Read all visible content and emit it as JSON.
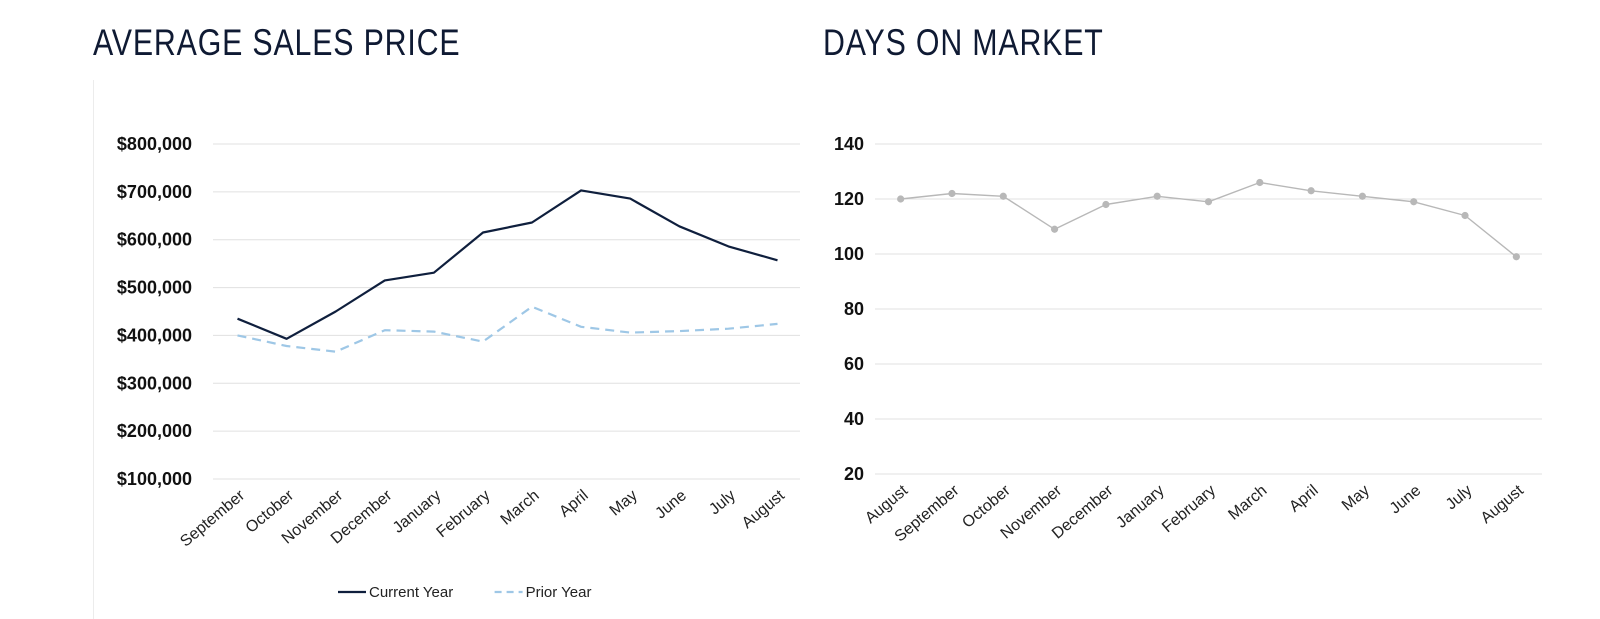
{
  "chart_data": [
    {
      "type": "line",
      "title": "AVERAGE SALES PRICE",
      "xlabel": "",
      "ylabel": "",
      "ylim": [
        100000,
        800000
      ],
      "y_ticks": [
        100000,
        200000,
        300000,
        400000,
        500000,
        600000,
        700000,
        800000
      ],
      "y_tick_labels": [
        "$100,000",
        "$200,000",
        "$300,000",
        "$400,000",
        "$500,000",
        "$600,000",
        "$700,000",
        "$800,000"
      ],
      "categories": [
        "September",
        "October",
        "November",
        "December",
        "January",
        "February",
        "March",
        "April",
        "May",
        "June",
        "July",
        "August"
      ],
      "grid": true,
      "legend_position": "bottom",
      "series": [
        {
          "name": "Current Year",
          "color": "#0f1f3d",
          "style": "solid",
          "values": [
            435000,
            393000,
            450000,
            515000,
            531000,
            615000,
            636000,
            703000,
            686000,
            628000,
            586000,
            557000
          ]
        },
        {
          "name": "Prior Year",
          "color": "#9ec7e6",
          "style": "dashed",
          "values": [
            400000,
            378000,
            366000,
            411000,
            408000,
            387000,
            460000,
            418000,
            406000,
            409000,
            414000,
            424000
          ]
        }
      ]
    },
    {
      "type": "line",
      "title": "DAYS ON MARKET",
      "xlabel": "",
      "ylabel": "",
      "ylim": [
        20,
        140
      ],
      "y_ticks": [
        20,
        40,
        60,
        80,
        100,
        120,
        140
      ],
      "y_tick_labels": [
        "20",
        "40",
        "60",
        "80",
        "100",
        "120",
        "140"
      ],
      "categories": [
        "August",
        "September",
        "October",
        "November",
        "December",
        "January",
        "February",
        "March",
        "April",
        "May",
        "June",
        "July",
        "August"
      ],
      "grid": true,
      "markers": true,
      "series": [
        {
          "color": "#b8b8b8",
          "style": "solid",
          "values": [
            120,
            122,
            121,
            109,
            118,
            121,
            119,
            126,
            123,
            121,
            119,
            114,
            99
          ]
        }
      ]
    }
  ]
}
